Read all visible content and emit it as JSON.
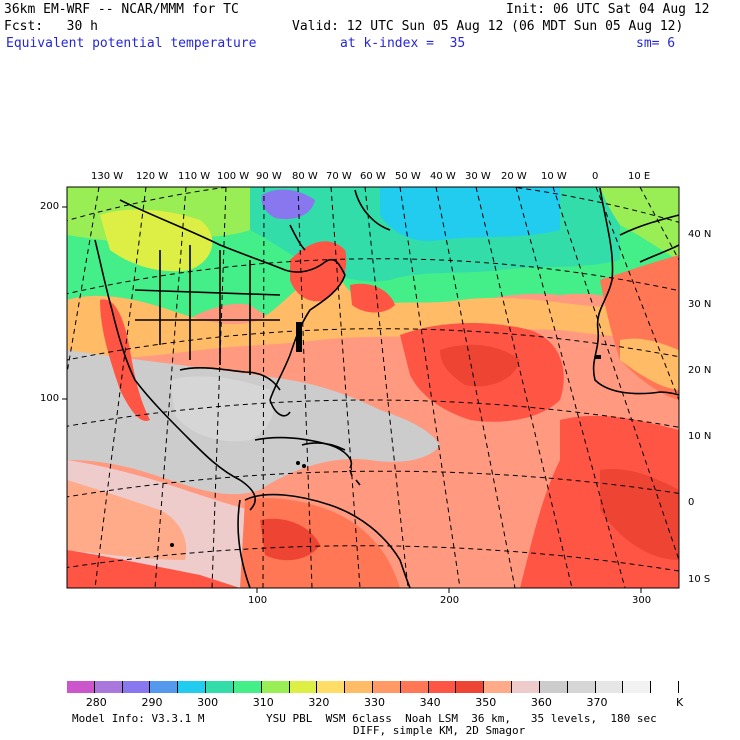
{
  "header": {
    "model": "36km EM-WRF -- NCAR/MMM for TC",
    "init": "Init: 06 UTC Sat 04 Aug 12",
    "fcst": "Fcst:   30 h",
    "valid": "Valid: 12 UTC Sun 05 Aug 12 (06 MDT Sun 05 Aug 12)",
    "field": "Equivalent potential temperature",
    "level": "at k-index =  35",
    "smooth": "sm= 6"
  },
  "lon_labels": [
    "130 W",
    "120 W",
    "110 W",
    "100 W",
    "90 W",
    "80 W",
    "70 W",
    "60 W",
    "50 W",
    "40 W",
    "30 W",
    "20 W",
    "10 W",
    "0",
    "10 E"
  ],
  "lat_labels": [
    "40 N",
    "30 N",
    "20 N",
    "10 N",
    "0",
    "10 S"
  ],
  "grid_y_labels": [
    "200",
    "100"
  ],
  "grid_x_labels": [
    "100",
    "200",
    "300"
  ],
  "colorbar": {
    "colors": [
      "#cc55cc",
      "#aa77dd",
      "#8877ee",
      "#5599ee",
      "#22ccee",
      "#33ddaa",
      "#44ee88",
      "#99ee55",
      "#ddee44",
      "#ffdd66",
      "#ffbb66",
      "#ff9966",
      "#ff7755",
      "#ff5544",
      "#ee4433",
      "#ffaa88",
      "#eecccc",
      "#cccccc",
      "#d6d6d6",
      "#e6e6e6",
      "#f2f2f2",
      "#ffffff"
    ],
    "labels": [
      "280",
      "290",
      "300",
      "310",
      "320",
      "330",
      "340",
      "350",
      "360",
      "370"
    ],
    "unit": "K"
  },
  "footer": {
    "info": "Model Info: V3.3.1 M",
    "physics": "YSU PBL  WSM 6class  Noah LSM  36 km,   35 levels,  180 sec",
    "diff": "DIFF, simple KM, 2D Smagor"
  }
}
